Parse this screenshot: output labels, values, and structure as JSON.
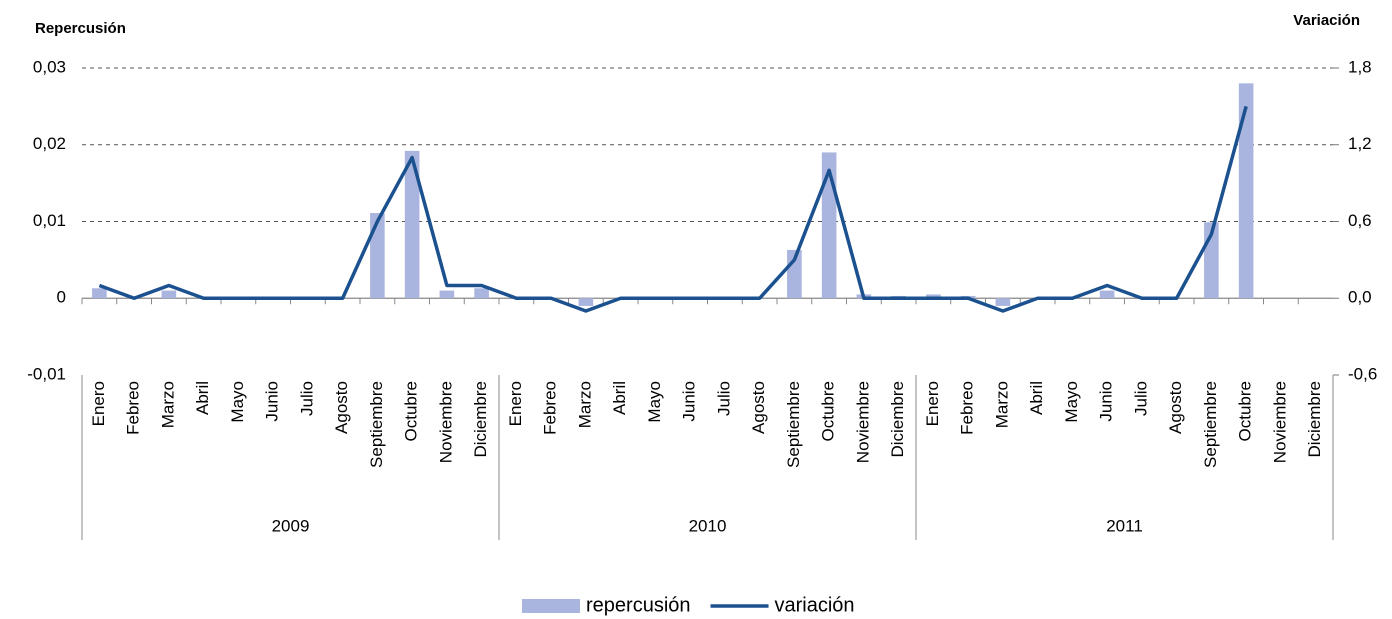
{
  "chart_data": {
    "type": "bar",
    "y_title": "Repercusión",
    "y2_title": "Variación",
    "categories": [
      "Enero",
      "Febreo",
      "Marzo",
      "Abril",
      "Mayo",
      "Junio",
      "Julio",
      "Agosto",
      "Septiembre",
      "Octubre",
      "Noviembre",
      "Diciembre",
      "Enero",
      "Febreo",
      "Marzo",
      "Abril",
      "Mayo",
      "Junio",
      "Julio",
      "Agosto",
      "Septiembre",
      "Octubre",
      "Noviembre",
      "Diciembre",
      "Enero",
      "Febreo",
      "Marzo",
      "Abril",
      "Mayo",
      "Junio",
      "Julio",
      "Agosto",
      "Septiembre",
      "Octubre",
      "Noviembre",
      "Diciembre"
    ],
    "groups": [
      "2009",
      "2010",
      "2011"
    ],
    "series": [
      {
        "name": "repercusión",
        "type": "bar",
        "color": "#a9b5de",
        "values": [
          0.0013,
          0,
          0.001,
          0,
          0,
          0,
          0,
          0,
          0.0111,
          0.0192,
          0.001,
          0.0013,
          0,
          0,
          -0.001,
          0,
          0,
          0,
          0,
          0,
          0.0063,
          0.019,
          0.0005,
          0.0003,
          0.0005,
          0.0003,
          -0.001,
          0,
          0,
          0.001,
          0,
          0,
          0.0099,
          0.028,
          null,
          null
        ]
      },
      {
        "name": "variación",
        "type": "line",
        "axis": "y2",
        "color": "#1c5190",
        "values": [
          0.1,
          0,
          0.1,
          0,
          0,
          0,
          0,
          0,
          0.6,
          1.1,
          0.1,
          0.1,
          0,
          0,
          -0.1,
          0,
          0,
          0,
          0,
          0,
          0.3,
          1.0,
          0,
          0,
          0,
          0,
          -0.1,
          0,
          0,
          0.1,
          0,
          0,
          0.5,
          1.5,
          null,
          null
        ]
      }
    ],
    "ylim": [
      -0.01,
      0.03
    ],
    "yticks": [
      {
        "value": -0.01,
        "label": "-0,01"
      },
      0,
      {
        "value": 0.01,
        "label": "0,01"
      },
      {
        "value": 0.02,
        "label": "0,02"
      },
      {
        "value": 0.03,
        "label": "0,03"
      }
    ],
    "y2lim": [
      -0.6,
      1.8
    ],
    "y2ticks": [
      {
        "value": -0.6,
        "label": "-0,6"
      },
      {
        "value": 0,
        "label": "0,0"
      },
      {
        "value": 0.6,
        "label": "0,6"
      },
      {
        "value": 1.2,
        "label": "1,2"
      },
      {
        "value": 1.8,
        "label": "1,8"
      }
    ],
    "grid": true,
    "legend": "bottom"
  }
}
